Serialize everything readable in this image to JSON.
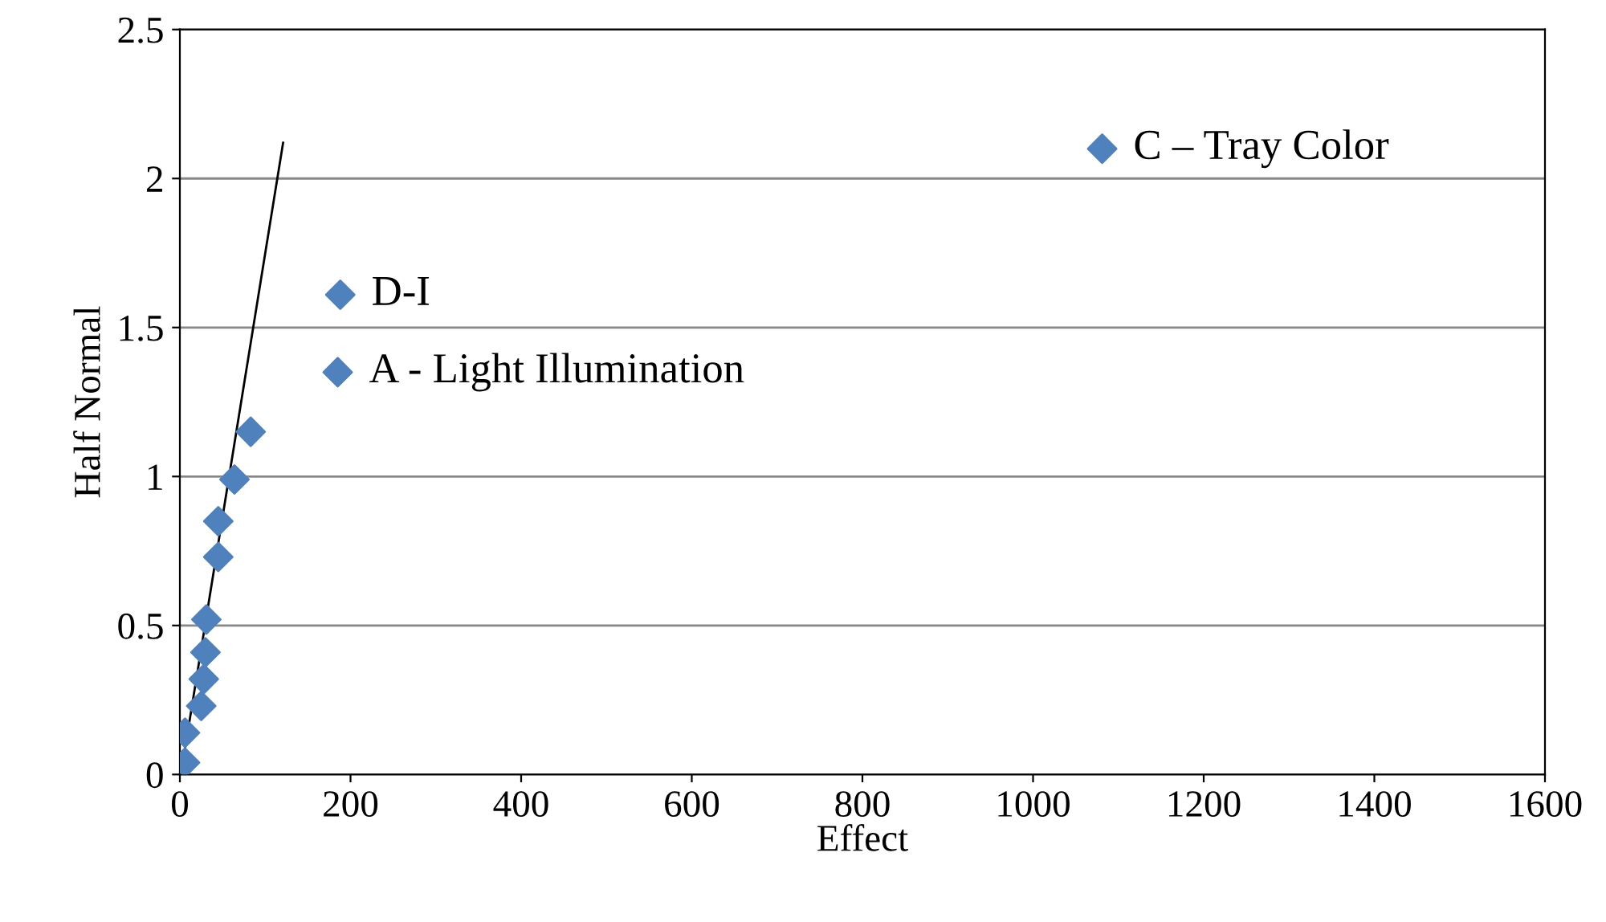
{
  "chart_data": {
    "type": "scatter",
    "xlabel": "Effect",
    "ylabel": "Half Normal",
    "series": [
      {
        "marker": "diamond",
        "color": "#4f81bd",
        "x": [
          6,
          6,
          25,
          28,
          30,
          31,
          45,
          45,
          64,
          83,
          185,
          188,
          1081
        ],
        "values": [
          0.04,
          0.14,
          0.23,
          0.32,
          0.41,
          0.52,
          0.73,
          0.85,
          0.99,
          1.15,
          1.35,
          1.61,
          2.1
        ]
      },
      {
        "type": "line",
        "marker": "none",
        "color": "#000000",
        "x": [
          4,
          121
        ],
        "values": [
          0.05,
          2.12
        ]
      }
    ],
    "annotations": [
      {
        "text": "C – Tray Color",
        "x": 1081,
        "y": 2.1
      },
      {
        "text": "D-I",
        "x": 188,
        "y": 1.61
      },
      {
        "text": "A - Light Illumination",
        "x": 185,
        "y": 1.35
      }
    ],
    "xlim": [
      0,
      1600
    ],
    "xticks": [
      0,
      200,
      400,
      600,
      800,
      1000,
      1200,
      1400,
      1600
    ],
    "ylim": [
      0,
      2.5
    ],
    "yticks": [
      0,
      0.5,
      1,
      1.5,
      2,
      2.5
    ],
    "grid": "y",
    "legend": false
  }
}
